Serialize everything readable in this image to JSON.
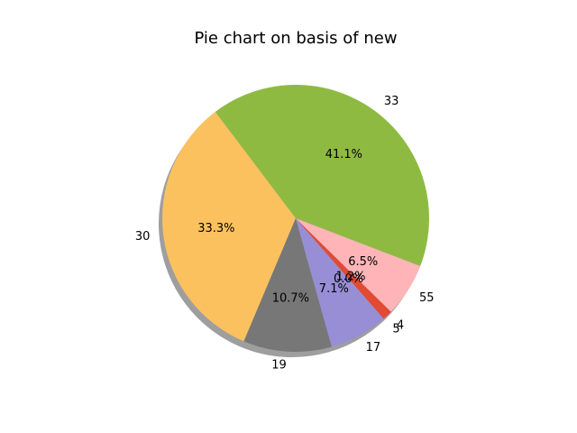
{
  "chart_data": {
    "type": "pie",
    "title": "Pie chart on basis of new",
    "shadow": true,
    "slices": [
      {
        "label": "33",
        "percent": 41.1,
        "pct_label": "41.1%",
        "color": "#8fba42"
      },
      {
        "label": "30",
        "percent": 33.3,
        "pct_label": "33.3%",
        "color": "#fbc15e"
      },
      {
        "label": "19",
        "percent": 10.7,
        "pct_label": "10.7%",
        "color": "#777777"
      },
      {
        "label": "17",
        "percent": 7.1,
        "pct_label": "7.1%",
        "color": "#988ed5"
      },
      {
        "label": "5",
        "percent": 0.0,
        "pct_label": "0.0%",
        "color": "#348abd"
      },
      {
        "label": "4",
        "percent": 1.2,
        "pct_label": "1.2%",
        "color": "#e24a33"
      },
      {
        "label": "55",
        "percent": 6.5,
        "pct_label": "6.5%",
        "color": "#ffb5b8"
      }
    ]
  }
}
